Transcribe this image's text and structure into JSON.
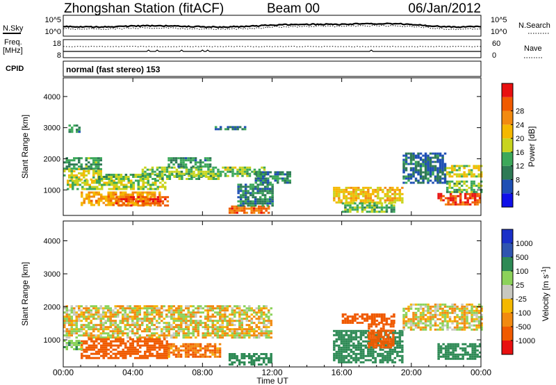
{
  "header": {
    "station": "Zhongshan Station (fitACF)",
    "beam": "Beam 00",
    "date": "06/Jan/2012"
  },
  "strip_labels": {
    "nsky": "N.Sky",
    "nsearch": "N.Search",
    "freq_top": "Freq.",
    "freq_unit": "[MHz]",
    "nave": "Nave",
    "cpid": "CPID",
    "nsky_ticks": [
      "10^5",
      "10^0"
    ],
    "nsearch_ticks": [
      "10^5",
      "10^0"
    ],
    "freq_ticks": [
      "18",
      "8"
    ],
    "nave_ticks": [
      "60",
      "0"
    ]
  },
  "cpid_text": "normal (fast stereo) 153",
  "x_axis": {
    "label": "Time UT",
    "ticks": [
      "00:00",
      "04:00",
      "08:00",
      "12:00",
      "16:00",
      "20:00",
      "00:00"
    ]
  },
  "colors": {
    "power": [
      "#1010e8",
      "#1e4fb4",
      "#2e7a55",
      "#3ca85a",
      "#c8d41e",
      "#f5b800",
      "#f28a10",
      "#f05a00",
      "#e81010"
    ],
    "velocity": [
      "#e81010",
      "#f05a00",
      "#f28a10",
      "#f5b800",
      "#c8c8c0",
      "#8cd25a",
      "#2e8a55",
      "#2f55b0",
      "#1a30c8"
    ]
  },
  "chart_data": [
    {
      "type": "heatmap",
      "panel": "power",
      "xlabel": "",
      "ylabel": "Slant Range [km]",
      "x_unit": "hours UT",
      "xlim": [
        0,
        24
      ],
      "ylim": [
        180,
        4600
      ],
      "y_ticks": [
        1000,
        2000,
        3000,
        4000
      ],
      "colorbar": {
        "label": "Power [dB]",
        "ticks": [
          "4",
          "8",
          "12",
          "16",
          "20",
          "24",
          "28"
        ],
        "range": [
          0,
          30
        ]
      },
      "regions": [
        {
          "t0": 0.0,
          "t1": 2.2,
          "r0": 1350,
          "r1": 1700,
          "value": 16
        },
        {
          "t0": 0.0,
          "t1": 2.2,
          "r0": 1700,
          "r1": 2050,
          "value": 10
        },
        {
          "t0": 0.2,
          "t1": 5.8,
          "r0": 1000,
          "r1": 1330,
          "value": 14
        },
        {
          "t0": 1.0,
          "t1": 5.5,
          "r0": 500,
          "r1": 950,
          "value": 21
        },
        {
          "t0": 3.0,
          "t1": 6.0,
          "r0": 500,
          "r1": 800,
          "value": 27
        },
        {
          "t0": 2.0,
          "t1": 9.0,
          "r0": 1330,
          "r1": 1520,
          "value": 12
        },
        {
          "t0": 4.5,
          "t1": 11.5,
          "r0": 1450,
          "r1": 1750,
          "value": 13
        },
        {
          "t0": 6.0,
          "t1": 8.5,
          "r0": 1750,
          "r1": 2050,
          "value": 9
        },
        {
          "t0": 9.5,
          "t1": 11.8,
          "r0": 250,
          "r1": 500,
          "value": 25
        },
        {
          "t0": 10.0,
          "t1": 12.0,
          "r0": 500,
          "r1": 1200,
          "value": 8
        },
        {
          "t0": 11.0,
          "t1": 13.0,
          "r0": 1200,
          "r1": 1600,
          "value": 8
        },
        {
          "t0": 15.5,
          "t1": 19.5,
          "r0": 600,
          "r1": 1100,
          "value": 19
        },
        {
          "t0": 16.0,
          "t1": 19.0,
          "r0": 300,
          "r1": 600,
          "value": 12
        },
        {
          "t0": 19.5,
          "t1": 22.0,
          "r0": 1200,
          "r1": 2200,
          "value": 6
        },
        {
          "t0": 21.5,
          "t1": 24.0,
          "r0": 550,
          "r1": 900,
          "value": 27
        },
        {
          "t0": 22.0,
          "t1": 24.0,
          "r0": 1400,
          "r1": 1800,
          "value": 16
        },
        {
          "t0": 22.0,
          "t1": 24.0,
          "r0": 900,
          "r1": 1300,
          "value": 12
        },
        {
          "t0": 0.3,
          "t1": 0.9,
          "r0": 2850,
          "r1": 3100,
          "value": 8
        },
        {
          "t0": 8.7,
          "t1": 10.5,
          "r0": 2950,
          "r1": 3050,
          "value": 8
        }
      ]
    },
    {
      "type": "heatmap",
      "panel": "velocity",
      "xlabel": "Time UT",
      "ylabel": "Slant Range [km]",
      "x_unit": "hours UT",
      "xlim": [
        0,
        24
      ],
      "ylim": [
        180,
        4600
      ],
      "y_ticks": [
        1000,
        2000,
        3000,
        4000
      ],
      "colorbar": {
        "label": "Velocity [m s^-1]",
        "ticks": [
          "1000",
          "500",
          "100",
          "25",
          "-25",
          "-100",
          "-500",
          "-1000"
        ]
      },
      "regions": [
        {
          "t0": 0.0,
          "t1": 12.0,
          "r0": 1100,
          "r1": 2050,
          "value": 0
        },
        {
          "t0": 1.0,
          "t1": 6.0,
          "r0": 450,
          "r1": 1050,
          "value": -300
        },
        {
          "t0": 0.0,
          "t1": 1.0,
          "r0": 700,
          "r1": 1000,
          "value": 60
        },
        {
          "t0": 6.0,
          "t1": 9.0,
          "r0": 500,
          "r1": 900,
          "value": -100
        },
        {
          "t0": 9.5,
          "t1": 12.0,
          "r0": 250,
          "r1": 600,
          "value": 300
        },
        {
          "t0": 15.5,
          "t1": 19.5,
          "r0": 300,
          "r1": 1300,
          "value": 300
        },
        {
          "t0": 17.5,
          "t1": 19.0,
          "r0": 800,
          "r1": 1500,
          "value": -400
        },
        {
          "t0": 16.0,
          "t1": 19.0,
          "r0": 1500,
          "r1": 1800,
          "value": -200
        },
        {
          "t0": 19.5,
          "t1": 24.0,
          "r0": 1300,
          "r1": 2100,
          "value": 0
        },
        {
          "t0": 21.5,
          "t1": 24.0,
          "r0": 400,
          "r1": 900,
          "value": 300
        }
      ]
    }
  ]
}
